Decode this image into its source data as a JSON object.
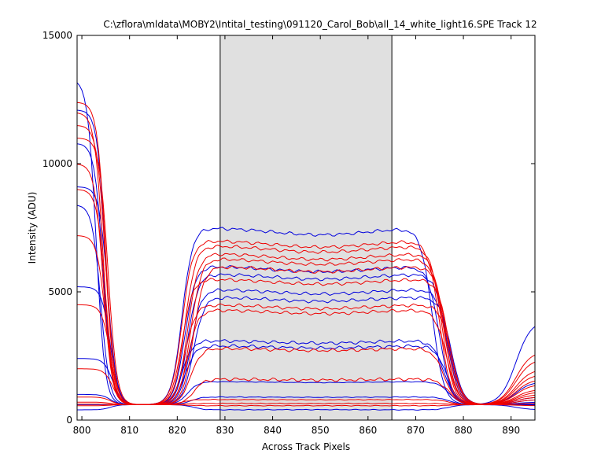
{
  "chart_data": {
    "type": "line",
    "title": "C:\\zflora\\mldata\\MOBY2\\Intital_testing\\091120_Carol_Bob\\all_14_white_light16.SPE   Track 12",
    "xlabel": "Across Track Pixels",
    "ylabel": "Intensity (ADU)",
    "xlim": [
      799,
      895
    ],
    "ylim": [
      0,
      15000
    ],
    "xticks": [
      800,
      810,
      820,
      830,
      840,
      850,
      860,
      870,
      880,
      890
    ],
    "yticks": [
      0,
      5000,
      10000,
      15000
    ],
    "grid": false,
    "legend": "none",
    "highlight_region": {
      "x_start": 829,
      "x_end": 865,
      "color": "#e0e0e0"
    },
    "colors": {
      "blue": "#0000dd",
      "red": "#ee0000"
    },
    "series": [
      {
        "color": "blue",
        "left_peak": 13300,
        "left_edge": 803.0,
        "plateau": 7500,
        "right_edge": 873.5,
        "right_peak": 3900
      },
      {
        "color": "blue",
        "left_peak": 12100,
        "left_edge": 805.0,
        "plateau": 6000,
        "right_edge": 875.0,
        "right_peak": 1500
      },
      {
        "color": "blue",
        "left_peak": 10800,
        "left_edge": 804.5,
        "plateau": 5700,
        "right_edge": 876.5,
        "right_peak": 900
      },
      {
        "color": "blue",
        "left_peak": 9100,
        "left_edge": 805.5,
        "plateau": 5100,
        "right_edge": 877.0,
        "right_peak": 800
      },
      {
        "color": "blue",
        "left_peak": 8400,
        "left_edge": 804.0,
        "plateau": 4800,
        "right_edge": 877.5,
        "right_peak": 700
      },
      {
        "color": "blue",
        "left_peak": 5200,
        "left_edge": 806.0,
        "plateau": 3100,
        "right_edge": 876.0,
        "right_peak": 650
      },
      {
        "color": "blue",
        "left_peak": 2400,
        "left_edge": 806.5,
        "plateau": 2900,
        "right_edge": 876.5,
        "right_peak": 620
      },
      {
        "color": "blue",
        "left_peak": 1000,
        "left_edge": 806.0,
        "plateau": 1500,
        "right_edge": 877.0,
        "right_peak": 600
      },
      {
        "color": "blue",
        "left_peak": 600,
        "left_edge": 806.0,
        "plateau": 900,
        "right_edge": 877.0,
        "right_peak": 580
      },
      {
        "color": "blue",
        "left_peak": 400,
        "left_edge": 806.0,
        "plateau": 400,
        "right_edge": 877.0,
        "right_peak": 400
      },
      {
        "color": "red",
        "left_peak": 12400,
        "left_edge": 805.0,
        "plateau": 7000,
        "right_edge": 875.0,
        "right_peak": 2700
      },
      {
        "color": "red",
        "left_peak": 12000,
        "left_edge": 804.5,
        "plateau": 6800,
        "right_edge": 875.5,
        "right_peak": 2400
      },
      {
        "color": "red",
        "left_peak": 11500,
        "left_edge": 805.0,
        "plateau": 6500,
        "right_edge": 876.0,
        "right_peak": 2000
      },
      {
        "color": "red",
        "left_peak": 11000,
        "left_edge": 805.5,
        "plateau": 6300,
        "right_edge": 876.0,
        "right_peak": 1800
      },
      {
        "color": "red",
        "left_peak": 10000,
        "left_edge": 804.5,
        "plateau": 6000,
        "right_edge": 876.5,
        "right_peak": 1600
      },
      {
        "color": "red",
        "left_peak": 9000,
        "left_edge": 805.0,
        "plateau": 5500,
        "right_edge": 877.0,
        "right_peak": 1400
      },
      {
        "color": "red",
        "left_peak": 7200,
        "left_edge": 805.0,
        "plateau": 4500,
        "right_edge": 877.5,
        "right_peak": 1200
      },
      {
        "color": "red",
        "left_peak": 4500,
        "left_edge": 806.0,
        "plateau": 4300,
        "right_edge": 876.5,
        "right_peak": 1100
      },
      {
        "color": "red",
        "left_peak": 2000,
        "left_edge": 806.5,
        "plateau": 2800,
        "right_edge": 876.0,
        "right_peak": 1000
      },
      {
        "color": "red",
        "left_peak": 900,
        "left_edge": 806.0,
        "plateau": 1600,
        "right_edge": 877.0,
        "right_peak": 900
      },
      {
        "color": "red",
        "left_peak": 700,
        "left_edge": 806.0,
        "plateau": 800,
        "right_edge": 877.0,
        "right_peak": 800
      },
      {
        "color": "red",
        "left_peak": 620,
        "left_edge": 806.0,
        "plateau": 650,
        "right_edge": 877.0,
        "right_peak": 650
      },
      {
        "color": "red",
        "left_peak": 560,
        "left_edge": 806.0,
        "plateau": 560,
        "right_edge": 877.0,
        "right_peak": 560
      }
    ]
  }
}
